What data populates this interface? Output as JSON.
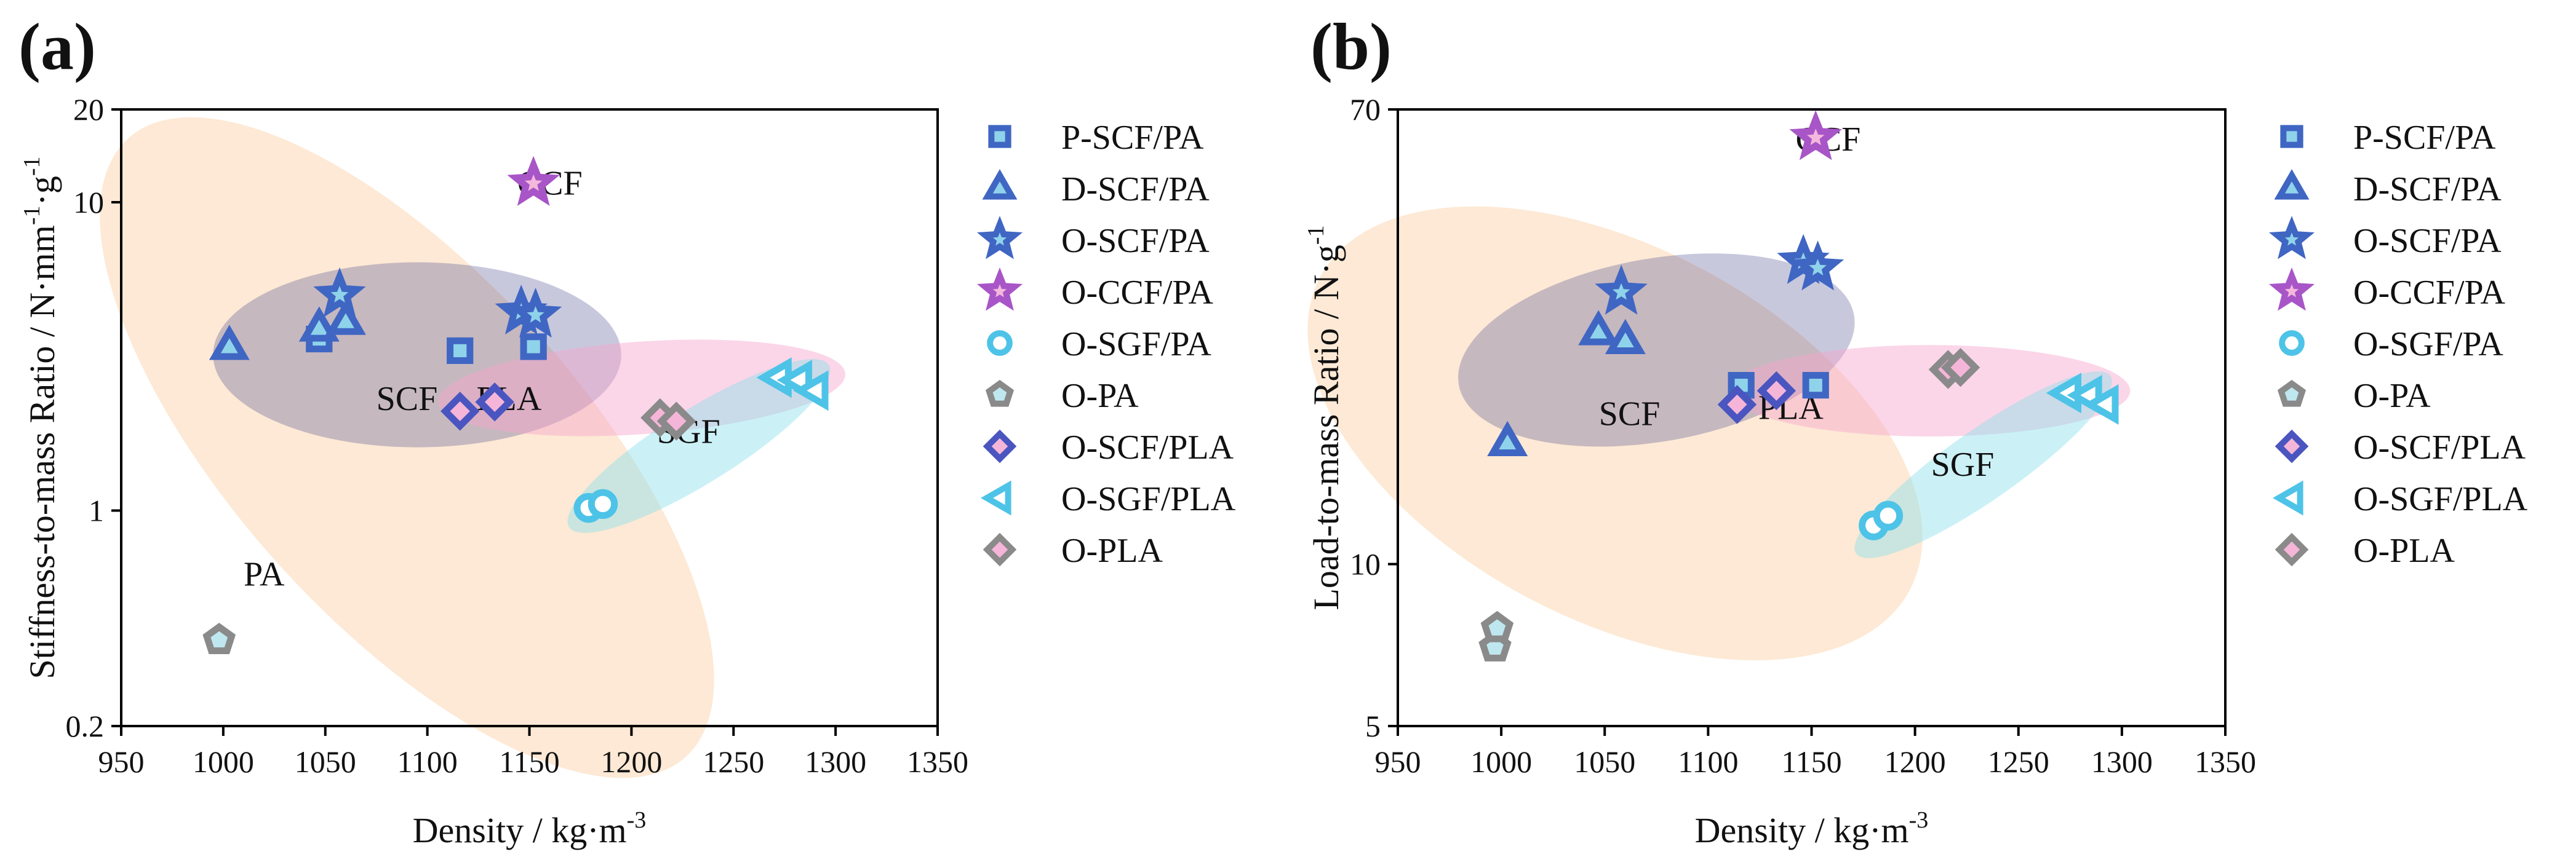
{
  "chart_data": [
    {
      "panel_label": "(a)",
      "type": "scatter",
      "xlabel": "Density / kg·m",
      "xlabel_sup": "-3",
      "ylabel": "Stiffness-to-mass Ratio / N·mm",
      "ylabel_sup1": "-1",
      "ylabel_mid": "·g",
      "ylabel_sup2": "-1",
      "xlim": [
        950,
        1350
      ],
      "ylim": [
        0.2,
        20
      ],
      "yscale": "log",
      "xticks": [
        "950",
        "1000",
        "1050",
        "1100",
        "1150",
        "1200",
        "1250",
        "1300",
        "1350"
      ],
      "xtick_values": [
        950,
        1000,
        1050,
        1100,
        1150,
        1200,
        1250,
        1300,
        1350
      ],
      "yticks": [
        "0.2",
        "1",
        "10",
        "20"
      ],
      "ytick_values": [
        0.2,
        1,
        10,
        20
      ],
      "regions": [
        {
          "label": "PA",
          "color": "#f9c591",
          "opacity": 0.38,
          "cx": 1090,
          "cy": 1.6,
          "rx_data": 85,
          "ry_logdecades": 1.35,
          "angle": -42,
          "label_x": 1020,
          "label_y": 0.62
        },
        {
          "label": "SCF",
          "color": "#4a4a8e",
          "opacity": 0.3,
          "cx": 1095,
          "cy": 3.2,
          "rx_data": 100,
          "ry_logdecades": 0.3,
          "angle": 0,
          "label_x": 1090,
          "label_y": 2.3
        },
        {
          "label": "PLA",
          "color": "#f6a3cc",
          "opacity": 0.45,
          "cx": 1205,
          "cy": 2.5,
          "rx_data": 100,
          "ry_logdecades": 0.15,
          "angle": -4,
          "label_x": 1140,
          "label_y": 2.3
        },
        {
          "label": "SGF",
          "color": "#8ce0ea",
          "opacity": 0.45,
          "cx": 1233,
          "cy": 1.62,
          "rx_data": 75,
          "ry_logdecades": 0.12,
          "angle": -32,
          "label_x": 1228,
          "label_y": 1.8
        },
        {
          "label": "CCF",
          "color": "#ffffff",
          "opacity": 0,
          "cx": 1152,
          "cy": 11.5,
          "rx_data": 0,
          "ry_logdecades": 0,
          "angle": 0,
          "label_x": 1160,
          "label_y": 11.5
        }
      ],
      "series": [
        {
          "name": "P-SCF/PA",
          "marker": "square",
          "points": [
            [
              1047,
              3.6
            ],
            [
              1116,
              3.3
            ],
            [
              1152,
              3.4
            ]
          ]
        },
        {
          "name": "D-SCF/PA",
          "marker": "triangle",
          "points": [
            [
              1003,
              3.4
            ],
            [
              1047,
              3.9
            ],
            [
              1060,
              4.1
            ]
          ]
        },
        {
          "name": "O-SCF/PA",
          "marker": "star",
          "points": [
            [
              1057,
              5.0
            ],
            [
              1146,
              4.4
            ],
            [
              1153,
              4.3
            ]
          ]
        },
        {
          "name": "O-CCF/PA",
          "marker": "star",
          "points": [
            [
              1152,
              11.5
            ]
          ]
        },
        {
          "name": "O-SGF/PA",
          "marker": "circle",
          "points": [
            [
              1179,
              1.02
            ],
            [
              1186,
              1.05
            ]
          ]
        },
        {
          "name": "O-PA",
          "marker": "pentagon",
          "points": [
            [
              998,
              0.38
            ],
            [
              998,
              0.38
            ]
          ]
        },
        {
          "name": "O-SCF/PLA",
          "marker": "diamond",
          "points": [
            [
              1116,
              2.1
            ],
            [
              1133,
              2.25
            ]
          ]
        },
        {
          "name": "O-SGF/PLA",
          "marker": "triangle-left",
          "points": [
            [
              1272,
              2.7
            ],
            [
              1282,
              2.65
            ],
            [
              1290,
              2.45
            ]
          ]
        },
        {
          "name": "O-PLA",
          "marker": "diamond",
          "points": [
            [
              1214,
              2.0
            ],
            [
              1222,
              1.95
            ]
          ]
        }
      ]
    },
    {
      "panel_label": "(b)",
      "type": "scatter",
      "xlabel": "Density / kg·m",
      "xlabel_sup": "-3",
      "ylabel": "Load-to-mass Ratio / N·g",
      "ylabel_sup1": "-1",
      "xlim": [
        950,
        1350
      ],
      "ylim": [
        5,
        70
      ],
      "yscale": "log",
      "xticks": [
        "950",
        "1000",
        "1050",
        "1100",
        "1150",
        "1200",
        "1250",
        "1300",
        "1350"
      ],
      "xtick_values": [
        950,
        1000,
        1050,
        1100,
        1150,
        1200,
        1250,
        1300,
        1350
      ],
      "yticks": [
        "5",
        "10",
        "70"
      ],
      "ytick_values": [
        5,
        10,
        70
      ],
      "regions": [
        {
          "label": "",
          "color": "#f9c591",
          "opacity": 0.38,
          "cx": 1055,
          "cy": 17.5,
          "rx_data": 90,
          "ry_logdecades": 0.62,
          "angle": -62,
          "label_x": 0,
          "label_y": 0
        },
        {
          "label": "SCF",
          "color": "#4a4a8e",
          "opacity": 0.3,
          "cx": 1075,
          "cy": 25,
          "rx_data": 97,
          "ry_logdecades": 0.17,
          "angle": -10,
          "label_x": 1062,
          "label_y": 19
        },
        {
          "label": "PLA",
          "color": "#f6a3cc",
          "opacity": 0.45,
          "cx": 1207,
          "cy": 21,
          "rx_data": 97,
          "ry_logdecades": 0.085,
          "angle": 0,
          "label_x": 1140,
          "label_y": 19.5
        },
        {
          "label": "SGF",
          "color": "#8ce0ea",
          "opacity": 0.45,
          "cx": 1233,
          "cy": 15.3,
          "rx_data": 75,
          "ry_logdecades": 0.065,
          "angle": -35,
          "label_x": 1223,
          "label_y": 15.3
        },
        {
          "label": "CCF",
          "color": "#ffffff",
          "opacity": 0,
          "cx": 1152,
          "cy": 62,
          "rx_data": 0,
          "ry_logdecades": 0,
          "angle": 0,
          "label_x": 1158,
          "label_y": 61.5
        }
      ],
      "series": [
        {
          "name": "P-SCF/PA",
          "marker": "square",
          "points": [
            [
              1116,
              21.5
            ],
            [
              1152,
              21.5
            ]
          ]
        },
        {
          "name": "D-SCF/PA",
          "marker": "triangle",
          "points": [
            [
              1003,
              16.8
            ],
            [
              1047,
              27
            ],
            [
              1060,
              26
            ]
          ]
        },
        {
          "name": "O-SCF/PA",
          "marker": "star",
          "points": [
            [
              1058,
              32
            ],
            [
              1146,
              36.5
            ],
            [
              1153,
              35.5
            ]
          ]
        },
        {
          "name": "O-CCF/PA",
          "marker": "star",
          "points": [
            [
              1152,
              62
            ]
          ]
        },
        {
          "name": "O-SGF/PA",
          "marker": "circle",
          "points": [
            [
              1180,
              11.8
            ],
            [
              1187,
              12.3
            ]
          ]
        },
        {
          "name": "O-PA",
          "marker": "pentagon",
          "points": [
            [
              997,
              7.0
            ],
            [
              998,
              7.6
            ]
          ]
        },
        {
          "name": "O-SCF/PLA",
          "marker": "diamond",
          "points": [
            [
              1114,
              19.8
            ],
            [
              1133,
              21.0
            ]
          ]
        },
        {
          "name": "O-SGF/PLA",
          "marker": "triangle-left",
          "points": [
            [
              1274,
              20.8
            ],
            [
              1284,
              20.6
            ],
            [
              1292,
              19.8
            ]
          ]
        },
        {
          "name": "O-PLA",
          "marker": "diamond",
          "points": [
            [
              1216,
              23.0
            ],
            [
              1222,
              23.2
            ]
          ]
        }
      ]
    }
  ],
  "legend": [
    {
      "name": "P-SCF/PA",
      "marker": "square",
      "stroke": "#4066c3",
      "fill": "#8fd3ea"
    },
    {
      "name": "D-SCF/PA",
      "marker": "triangle",
      "stroke": "#4066c3",
      "fill": "#8fd3ea"
    },
    {
      "name": "O-SCF/PA",
      "marker": "star",
      "stroke": "#4066c3",
      "fill": "#8fd3ea"
    },
    {
      "name": "O-CCF/PA",
      "marker": "star",
      "stroke": "#a855c8",
      "fill": "#f3b8dc"
    },
    {
      "name": "O-SGF/PA",
      "marker": "circle",
      "stroke": "#4ec3e8",
      "fill": "#ffffff"
    },
    {
      "name": "O-PA",
      "marker": "pentagon",
      "stroke": "#8a8a8a",
      "fill": "#bfe7ef"
    },
    {
      "name": "O-SCF/PLA",
      "marker": "diamond",
      "stroke": "#4a55c0",
      "fill": "#f5b5d8"
    },
    {
      "name": "O-SGF/PLA",
      "marker": "triangle-left",
      "stroke": "#4ec3e8",
      "fill": "#ffffff"
    },
    {
      "name": "O-PLA",
      "marker": "diamond",
      "stroke": "#8a8a8a",
      "fill": "#f5b5d8"
    }
  ]
}
